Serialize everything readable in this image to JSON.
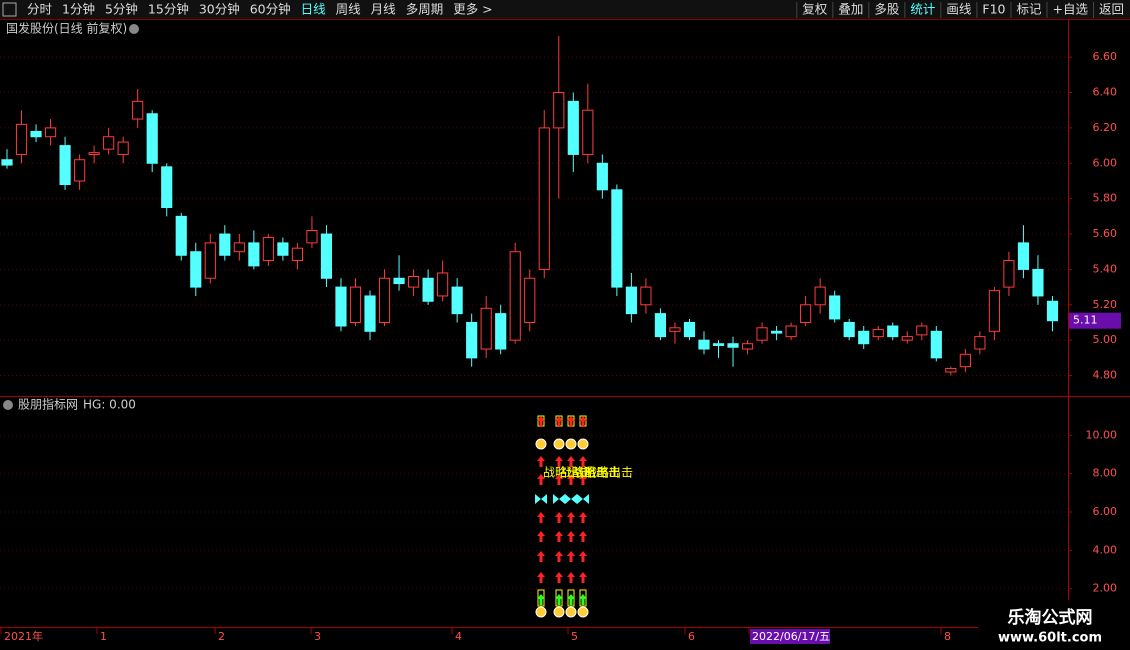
{
  "toolbar": {
    "left": [
      "分时",
      "1分钟",
      "5分钟",
      "15分钟",
      "30分钟",
      "60分钟",
      "日线",
      "周线",
      "月线",
      "多周期",
      "更多 >"
    ],
    "active": "日线",
    "right": [
      "复权",
      "叠加",
      "多股",
      "统计",
      "画线",
      "F10",
      "标记",
      "+自选",
      "返回"
    ]
  },
  "chart_data": {
    "type": "candlestick",
    "title": "国发股份(日线 前复权)",
    "up_color": "#ff3c3c",
    "down_color": "#54ffff",
    "grid": true,
    "ylim": [
      4.69,
      6.81
    ],
    "yticks": [
      {
        "value": 4.8,
        "label": "4.80"
      },
      {
        "value": 5.0,
        "label": "5.00"
      },
      {
        "value": 5.2,
        "label": "5.20"
      },
      {
        "value": 5.4,
        "label": "5.40"
      },
      {
        "value": 5.6,
        "label": "5.60"
      },
      {
        "value": 5.8,
        "label": "5.80"
      },
      {
        "value": 6.0,
        "label": "6.00"
      },
      {
        "value": 6.2,
        "label": "6.20"
      },
      {
        "value": 6.4,
        "label": "6.40"
      },
      {
        "value": 6.6,
        "label": "6.60"
      }
    ],
    "last_price": 5.11,
    "candles": [
      [
        6.02,
        6.08,
        5.97,
        5.99
      ],
      [
        6.05,
        6.3,
        6.0,
        6.22
      ],
      [
        6.18,
        6.22,
        6.12,
        6.15
      ],
      [
        6.15,
        6.25,
        6.1,
        6.2
      ],
      [
        6.1,
        6.15,
        5.85,
        5.88
      ],
      [
        5.9,
        6.05,
        5.85,
        6.02
      ],
      [
        6.05,
        6.1,
        6.0,
        6.06
      ],
      [
        6.08,
        6.2,
        6.05,
        6.15
      ],
      [
        6.05,
        6.15,
        6.0,
        6.12
      ],
      [
        6.25,
        6.42,
        6.2,
        6.35
      ],
      [
        6.28,
        6.3,
        5.95,
        6.0
      ],
      [
        5.98,
        6.0,
        5.7,
        5.75
      ],
      [
        5.7,
        5.72,
        5.45,
        5.48
      ],
      [
        5.5,
        5.55,
        5.25,
        5.3
      ],
      [
        5.35,
        5.6,
        5.32,
        5.55
      ],
      [
        5.6,
        5.65,
        5.45,
        5.48
      ],
      [
        5.5,
        5.6,
        5.45,
        5.55
      ],
      [
        5.55,
        5.62,
        5.4,
        5.42
      ],
      [
        5.45,
        5.6,
        5.42,
        5.58
      ],
      [
        5.55,
        5.58,
        5.45,
        5.48
      ],
      [
        5.45,
        5.55,
        5.4,
        5.52
      ],
      [
        5.55,
        5.7,
        5.52,
        5.62
      ],
      [
        5.6,
        5.65,
        5.3,
        5.35
      ],
      [
        5.3,
        5.35,
        5.05,
        5.08
      ],
      [
        5.1,
        5.35,
        5.08,
        5.3
      ],
      [
        5.25,
        5.28,
        5.0,
        5.05
      ],
      [
        5.1,
        5.4,
        5.08,
        5.35
      ],
      [
        5.35,
        5.48,
        5.28,
        5.32
      ],
      [
        5.3,
        5.4,
        5.25,
        5.36
      ],
      [
        5.35,
        5.4,
        5.2,
        5.22
      ],
      [
        5.25,
        5.45,
        5.22,
        5.38
      ],
      [
        5.3,
        5.35,
        5.1,
        5.15
      ],
      [
        5.1,
        5.15,
        4.85,
        4.9
      ],
      [
        4.95,
        5.25,
        4.9,
        5.18
      ],
      [
        5.15,
        5.2,
        4.92,
        4.95
      ],
      [
        5.0,
        5.55,
        4.98,
        5.5
      ],
      [
        5.1,
        5.4,
        5.05,
        5.35
      ],
      [
        5.4,
        6.3,
        5.35,
        6.2
      ],
      [
        6.2,
        6.72,
        5.8,
        6.4
      ],
      [
        6.35,
        6.4,
        5.95,
        6.05
      ],
      [
        6.05,
        6.45,
        6.0,
        6.3
      ],
      [
        6.0,
        6.05,
        5.8,
        5.85
      ],
      [
        5.85,
        5.88,
        5.25,
        5.3
      ],
      [
        5.3,
        5.38,
        5.1,
        5.15
      ],
      [
        5.2,
        5.35,
        5.15,
        5.3
      ],
      [
        5.15,
        5.18,
        5.0,
        5.02
      ],
      [
        5.05,
        5.1,
        4.98,
        5.07
      ],
      [
        5.1,
        5.12,
        5.0,
        5.02
      ],
      [
        5.0,
        5.05,
        4.92,
        4.95
      ],
      [
        4.98,
        5.0,
        4.9,
        4.97
      ],
      [
        4.98,
        5.02,
        4.85,
        4.96
      ],
      [
        4.95,
        5.0,
        4.92,
        4.98
      ],
      [
        5.0,
        5.1,
        4.98,
        5.07
      ],
      [
        5.05,
        5.08,
        5.0,
        5.04
      ],
      [
        5.02,
        5.1,
        5.0,
        5.08
      ],
      [
        5.1,
        5.25,
        5.08,
        5.2
      ],
      [
        5.2,
        5.35,
        5.15,
        5.3
      ],
      [
        5.25,
        5.28,
        5.1,
        5.12
      ],
      [
        5.1,
        5.12,
        5.0,
        5.02
      ],
      [
        5.05,
        5.08,
        4.95,
        4.98
      ],
      [
        5.02,
        5.08,
        5.0,
        5.06
      ],
      [
        5.08,
        5.1,
        5.0,
        5.02
      ],
      [
        5.0,
        5.05,
        4.98,
        5.02
      ],
      [
        5.03,
        5.1,
        5.0,
        5.08
      ],
      [
        5.05,
        5.08,
        4.88,
        4.9
      ],
      [
        4.82,
        4.85,
        4.8,
        4.84
      ],
      [
        4.85,
        4.95,
        4.82,
        4.92
      ],
      [
        4.95,
        5.05,
        4.92,
        5.02
      ],
      [
        5.05,
        5.3,
        5.0,
        5.28
      ],
      [
        5.3,
        5.5,
        5.25,
        5.45
      ],
      [
        5.55,
        5.65,
        5.35,
        5.4
      ],
      [
        5.4,
        5.48,
        5.2,
        5.25
      ],
      [
        5.22,
        5.25,
        5.05,
        5.11
      ]
    ]
  },
  "indicator": {
    "name": "股朋指标网",
    "status": "HG: 0.00",
    "signal_text": "战略出击",
    "ylim": [
      0,
      12
    ],
    "yticks": [
      {
        "value": 2,
        "label": "2.00"
      },
      {
        "value": 4,
        "label": "4.00"
      },
      {
        "value": 6,
        "label": "6.00"
      },
      {
        "value": 8,
        "label": "8.00"
      },
      {
        "value": 10,
        "label": "10.00"
      }
    ]
  },
  "date_axis": [
    "2021年",
    "1",
    "2",
    "3",
    "4",
    "5",
    "6",
    "2022/06/17/五",
    "8"
  ],
  "watermark": {
    "name": "乐淘公式网",
    "url": "www.60lt.com"
  }
}
